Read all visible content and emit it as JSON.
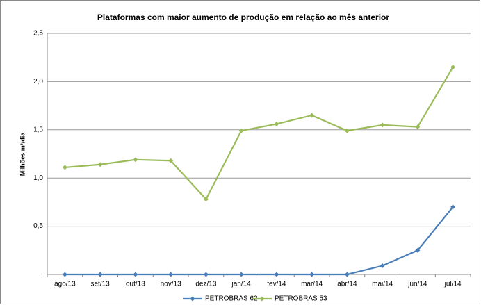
{
  "chart_data": {
    "type": "line",
    "title": "Plataformas com maior aumento de produção em relação ao mês anterior",
    "y_label": "Milhões m³/dia",
    "categories": [
      "ago/13",
      "set/13",
      "out/13",
      "nov/13",
      "dez/13",
      "jan/14",
      "fev/14",
      "mar/14",
      "abr/14",
      "mai/14",
      "jun/14",
      "jul/14"
    ],
    "series": [
      {
        "name": "PETROBRAS 62",
        "color": "#4a7ebb",
        "values": [
          0,
          0,
          0,
          0,
          0,
          0,
          0,
          0,
          0,
          0.09,
          0.25,
          0.7
        ]
      },
      {
        "name": "PETROBRAS 53",
        "color": "#9bbb59",
        "values": [
          1.11,
          1.14,
          1.19,
          1.18,
          0.78,
          1.49,
          1.56,
          1.65,
          1.49,
          1.55,
          1.53,
          2.15
        ]
      }
    ],
    "ylim": [
      0,
      2.5
    ],
    "yticks": [
      {
        "value": 0,
        "label": "-"
      },
      {
        "value": 0.5,
        "label": "0,5"
      },
      {
        "value": 1.0,
        "label": "1,0"
      },
      {
        "value": 1.5,
        "label": "1,5"
      },
      {
        "value": 2.0,
        "label": "2,0"
      },
      {
        "value": 2.5,
        "label": "2,5"
      }
    ],
    "grid": true,
    "legend": "bottom"
  }
}
